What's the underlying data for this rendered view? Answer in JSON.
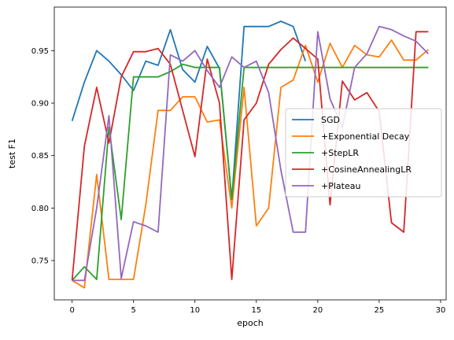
{
  "chart_data": {
    "type": "line",
    "title": "",
    "xlabel": "epoch",
    "ylabel": "test F1",
    "xlim": [
      -1.45,
      30.45
    ],
    "ylim": [
      0.7125,
      0.9915
    ],
    "xticks": [
      0,
      5,
      10,
      15,
      20,
      25,
      30
    ],
    "yticks": [
      0.75,
      0.8,
      0.85,
      0.9,
      0.95
    ],
    "grid": false,
    "legend_position": "center-right",
    "series": [
      {
        "name": "SGD",
        "color": "#1f77b4",
        "x": [
          0,
          1,
          2,
          3,
          4,
          5,
          6,
          7,
          8,
          9,
          10,
          11,
          12,
          13,
          14,
          15,
          16,
          17,
          18,
          19
        ],
        "y": [
          0.883,
          0.92,
          0.95,
          0.94,
          0.927,
          0.912,
          0.94,
          0.936,
          0.97,
          0.932,
          0.92,
          0.954,
          0.933,
          0.808,
          0.973,
          0.973,
          0.973,
          0.978,
          0.973,
          0.94
        ]
      },
      {
        "name": "+Exponential Decay",
        "color": "#ff7f0e",
        "x": [
          0,
          1,
          2,
          3,
          4,
          5,
          6,
          7,
          8,
          9,
          10,
          11,
          12,
          13,
          14,
          15,
          16,
          17,
          18,
          19,
          20,
          21,
          22,
          23,
          24,
          25,
          26,
          27,
          28,
          29
        ],
        "y": [
          0.731,
          0.724,
          0.832,
          0.732,
          0.732,
          0.732,
          0.803,
          0.893,
          0.893,
          0.906,
          0.906,
          0.882,
          0.884,
          0.8,
          0.915,
          0.783,
          0.8,
          0.915,
          0.922,
          0.955,
          0.92,
          0.957,
          0.934,
          0.955,
          0.946,
          0.944,
          0.96,
          0.941,
          0.941,
          0.951
        ]
      },
      {
        "name": "+StepLR",
        "color": "#2ca02c",
        "x": [
          0,
          1,
          2,
          3,
          4,
          5,
          6,
          7,
          8,
          9,
          10,
          11,
          12,
          13,
          14,
          15,
          16,
          17,
          18,
          19,
          20,
          21,
          22,
          23,
          24,
          25,
          26,
          27,
          28,
          29
        ],
        "y": [
          0.731,
          0.744,
          0.732,
          0.877,
          0.789,
          0.925,
          0.925,
          0.925,
          0.93,
          0.937,
          0.934,
          0.934,
          0.934,
          0.808,
          0.934,
          0.934,
          0.934,
          0.934,
          0.934,
          0.934,
          0.934,
          0.934,
          0.934,
          0.934,
          0.934,
          0.934,
          0.934,
          0.934,
          0.934,
          0.934
        ]
      },
      {
        "name": "+CosineAnnealingLR",
        "color": "#d62728",
        "x": [
          0,
          1,
          2,
          3,
          4,
          5,
          6,
          7,
          8,
          9,
          10,
          11,
          12,
          13,
          14,
          15,
          16,
          17,
          18,
          19,
          20,
          21,
          22,
          23,
          24,
          25,
          26,
          27,
          28,
          29
        ],
        "y": [
          0.731,
          0.859,
          0.915,
          0.862,
          0.925,
          0.949,
          0.949,
          0.952,
          0.937,
          0.893,
          0.849,
          0.942,
          0.9,
          0.732,
          0.884,
          0.9,
          0.937,
          0.951,
          0.962,
          0.952,
          0.942,
          0.803,
          0.921,
          0.903,
          0.91,
          0.892,
          0.786,
          0.777,
          0.968,
          0.968
        ]
      },
      {
        "name": "+Plateau",
        "color": "#9467bd",
        "x": [
          0,
          1,
          2,
          3,
          4,
          5,
          6,
          7,
          8,
          9,
          10,
          11,
          12,
          13,
          14,
          15,
          16,
          17,
          18,
          19,
          20,
          21,
          22,
          23,
          24,
          25,
          26,
          27,
          28,
          29
        ],
        "y": [
          0.731,
          0.731,
          0.8,
          0.888,
          0.733,
          0.787,
          0.783,
          0.777,
          0.946,
          0.94,
          0.95,
          0.931,
          0.915,
          0.944,
          0.934,
          0.94,
          0.91,
          0.836,
          0.777,
          0.777,
          0.968,
          0.904,
          0.877,
          0.934,
          0.947,
          0.973,
          0.97,
          0.964,
          0.959,
          0.947
        ]
      }
    ]
  }
}
